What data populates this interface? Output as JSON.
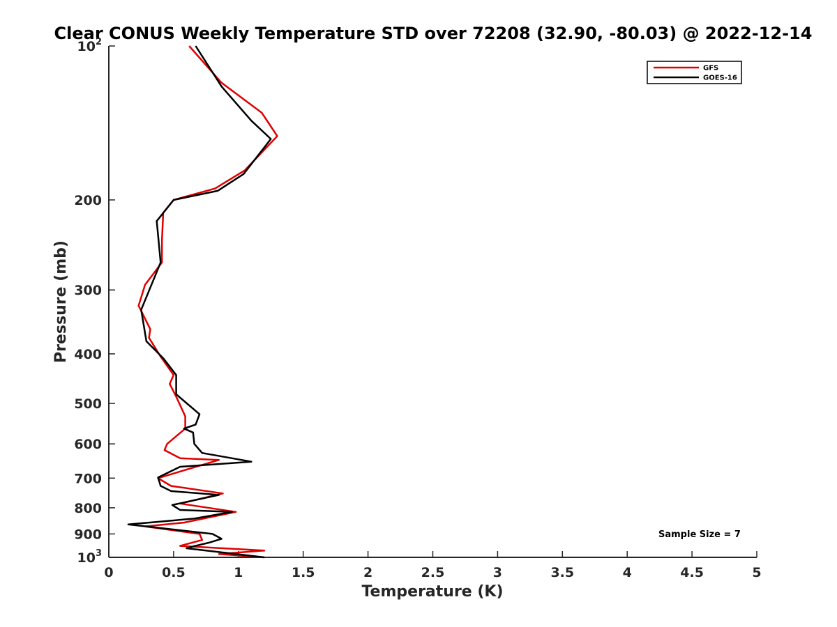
{
  "chart_data": {
    "type": "line",
    "title": "Clear CONUS Weekly Temperature STD over 72208 (32.90, -80.03) @ 2022-12-14",
    "xlabel": "Temperature (K)",
    "ylabel": "Pressure (mb)",
    "xlim": [
      0,
      5
    ],
    "ylim": [
      100,
      1000
    ],
    "y_scale": "log",
    "y_reversed": true,
    "grid": false,
    "legend_position": "top-right",
    "x_ticks": [
      0,
      0.5,
      1,
      1.5,
      2,
      2.5,
      3,
      3.5,
      4,
      4.5,
      5
    ],
    "x_tick_labels": [
      "0",
      "0.5",
      "1",
      "1.5",
      "2",
      "2.5",
      "3",
      "3.5",
      "4",
      "4.5",
      "5"
    ],
    "y_ticks": [
      {
        "value": 100,
        "base": "10",
        "exp": "2"
      },
      {
        "value": 200,
        "label": "200"
      },
      {
        "value": 300,
        "label": "300"
      },
      {
        "value": 400,
        "label": "400"
      },
      {
        "value": 500,
        "label": "500"
      },
      {
        "value": 600,
        "label": "600"
      },
      {
        "value": 700,
        "label": "700"
      },
      {
        "value": 800,
        "label": "800"
      },
      {
        "value": 900,
        "label": "900"
      },
      {
        "value": 1000,
        "base": "10",
        "exp": "3"
      }
    ],
    "annotation": "Sample Size = 7",
    "series": [
      {
        "name": "GFS",
        "color": "#e00000",
        "points": [
          [
            0.62,
            100
          ],
          [
            0.87,
            118
          ],
          [
            1.18,
            135
          ],
          [
            1.3,
            150
          ],
          [
            1.05,
            175
          ],
          [
            0.82,
            190
          ],
          [
            0.5,
            200
          ],
          [
            0.42,
            212
          ],
          [
            0.41,
            240
          ],
          [
            0.41,
            265
          ],
          [
            0.28,
            293
          ],
          [
            0.23,
            322
          ],
          [
            0.32,
            358
          ],
          [
            0.31,
            372
          ],
          [
            0.4,
            405
          ],
          [
            0.5,
            440
          ],
          [
            0.47,
            458
          ],
          [
            0.52,
            485
          ],
          [
            0.59,
            530
          ],
          [
            0.59,
            560
          ],
          [
            0.45,
            600
          ],
          [
            0.43,
            617
          ],
          [
            0.55,
            640
          ],
          [
            0.85,
            645
          ],
          [
            0.38,
            700
          ],
          [
            0.48,
            725
          ],
          [
            0.88,
            750
          ],
          [
            0.55,
            785
          ],
          [
            0.98,
            815
          ],
          [
            0.58,
            855
          ],
          [
            0.28,
            870
          ],
          [
            0.7,
            900
          ],
          [
            0.72,
            925
          ],
          [
            0.55,
            950
          ],
          [
            1.2,
            970
          ],
          [
            0.85,
            985
          ],
          [
            1.2,
            1000
          ]
        ]
      },
      {
        "name": "GOES-16",
        "color": "#000000",
        "points": [
          [
            0.67,
            100
          ],
          [
            0.87,
            120
          ],
          [
            1.1,
            140
          ],
          [
            1.25,
            152
          ],
          [
            1.04,
            178
          ],
          [
            0.84,
            192
          ],
          [
            0.5,
            200
          ],
          [
            0.37,
            220
          ],
          [
            0.4,
            265
          ],
          [
            0.25,
            328
          ],
          [
            0.29,
            378
          ],
          [
            0.42,
            408
          ],
          [
            0.52,
            440
          ],
          [
            0.52,
            480
          ],
          [
            0.7,
            525
          ],
          [
            0.67,
            550
          ],
          [
            0.58,
            560
          ],
          [
            0.65,
            570
          ],
          [
            0.66,
            600
          ],
          [
            0.72,
            625
          ],
          [
            1.1,
            650
          ],
          [
            0.55,
            665
          ],
          [
            0.38,
            698
          ],
          [
            0.4,
            725
          ],
          [
            0.48,
            742
          ],
          [
            0.85,
            755
          ],
          [
            0.49,
            790
          ],
          [
            0.55,
            808
          ],
          [
            0.95,
            815
          ],
          [
            0.66,
            840
          ],
          [
            0.15,
            862
          ],
          [
            0.8,
            900
          ],
          [
            0.87,
            920
          ],
          [
            0.78,
            935
          ],
          [
            0.65,
            952
          ],
          [
            0.6,
            960
          ],
          [
            1.2,
            1000
          ]
        ]
      }
    ]
  }
}
